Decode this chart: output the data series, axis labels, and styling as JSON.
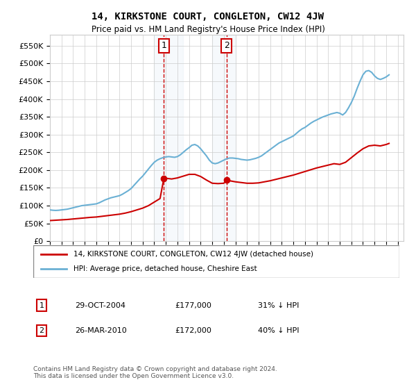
{
  "title": "14, KIRKSTONE COURT, CONGLETON, CW12 4JW",
  "subtitle": "Price paid vs. HM Land Registry's House Price Index (HPI)",
  "legend_line1": "14, KIRKSTONE COURT, CONGLETON, CW12 4JW (detached house)",
  "legend_line2": "HPI: Average price, detached house, Cheshire East",
  "transaction1_label": "1",
  "transaction1_date": "29-OCT-2004",
  "transaction1_price": "£177,000",
  "transaction1_hpi": "31% ↓ HPI",
  "transaction2_label": "2",
  "transaction2_date": "26-MAR-2010",
  "transaction2_price": "£172,000",
  "transaction2_hpi": "40% ↓ HPI",
  "copyright": "Contains HM Land Registry data © Crown copyright and database right 2024.\nThis data is licensed under the Open Government Licence v3.0.",
  "hpi_color": "#6ab0d4",
  "price_color": "#cc0000",
  "highlight_color": "#dce9f5",
  "transaction1_x": 2004.83,
  "transaction2_x": 2010.23,
  "ylim": [
    0,
    580000
  ],
  "xlim_start": 1995,
  "xlim_end": 2025.5,
  "hpi_data": {
    "years": [
      1995.0,
      1995.25,
      1995.5,
      1995.75,
      1996.0,
      1996.25,
      1996.5,
      1996.75,
      1997.0,
      1997.25,
      1997.5,
      1997.75,
      1998.0,
      1998.25,
      1998.5,
      1998.75,
      1999.0,
      1999.25,
      1999.5,
      1999.75,
      2000.0,
      2000.25,
      2000.5,
      2000.75,
      2001.0,
      2001.25,
      2001.5,
      2001.75,
      2002.0,
      2002.25,
      2002.5,
      2002.75,
      2003.0,
      2003.25,
      2003.5,
      2003.75,
      2004.0,
      2004.25,
      2004.5,
      2004.75,
      2005.0,
      2005.25,
      2005.5,
      2005.75,
      2006.0,
      2006.25,
      2006.5,
      2006.75,
      2007.0,
      2007.25,
      2007.5,
      2007.75,
      2008.0,
      2008.25,
      2008.5,
      2008.75,
      2009.0,
      2009.25,
      2009.5,
      2009.75,
      2010.0,
      2010.25,
      2010.5,
      2010.75,
      2011.0,
      2011.25,
      2011.5,
      2011.75,
      2012.0,
      2012.25,
      2012.5,
      2012.75,
      2013.0,
      2013.25,
      2013.5,
      2013.75,
      2014.0,
      2014.25,
      2014.5,
      2014.75,
      2015.0,
      2015.25,
      2015.5,
      2015.75,
      2016.0,
      2016.25,
      2016.5,
      2016.75,
      2017.0,
      2017.25,
      2017.5,
      2017.75,
      2018.0,
      2018.25,
      2018.5,
      2018.75,
      2019.0,
      2019.25,
      2019.5,
      2019.75,
      2020.0,
      2020.25,
      2020.5,
      2020.75,
      2021.0,
      2021.25,
      2021.5,
      2021.75,
      2022.0,
      2022.25,
      2022.5,
      2022.75,
      2023.0,
      2023.25,
      2023.5,
      2023.75,
      2024.0,
      2024.25
    ],
    "values": [
      88000,
      87000,
      86500,
      87000,
      88000,
      89000,
      90000,
      92000,
      94000,
      96000,
      98000,
      100000,
      101000,
      102000,
      103000,
      104000,
      105000,
      108000,
      112000,
      116000,
      119000,
      122000,
      124000,
      126000,
      128000,
      132000,
      137000,
      142000,
      148000,
      157000,
      166000,
      175000,
      183000,
      193000,
      203000,
      213000,
      222000,
      228000,
      232000,
      235000,
      237000,
      238000,
      237000,
      236000,
      238000,
      243000,
      250000,
      257000,
      263000,
      270000,
      272000,
      268000,
      260000,
      250000,
      240000,
      228000,
      220000,
      218000,
      220000,
      224000,
      228000,
      232000,
      234000,
      234000,
      233000,
      232000,
      230000,
      229000,
      228000,
      229000,
      231000,
      233000,
      236000,
      240000,
      246000,
      252000,
      258000,
      264000,
      270000,
      276000,
      280000,
      284000,
      288000,
      292000,
      296000,
      303000,
      310000,
      316000,
      320000,
      326000,
      332000,
      337000,
      341000,
      345000,
      349000,
      352000,
      355000,
      358000,
      360000,
      362000,
      360000,
      355000,
      362000,
      375000,
      390000,
      408000,
      430000,
      450000,
      468000,
      478000,
      480000,
      475000,
      465000,
      458000,
      455000,
      458000,
      462000,
      468000
    ]
  },
  "price_data": {
    "years": [
      1995.0,
      1995.5,
      1996.0,
      1996.5,
      1997.0,
      1997.5,
      1998.0,
      1998.5,
      1999.0,
      1999.5,
      2000.0,
      2000.5,
      2001.0,
      2001.5,
      2002.0,
      2002.5,
      2003.0,
      2003.5,
      2004.0,
      2004.5,
      2004.83,
      2005.0,
      2005.5,
      2006.0,
      2006.5,
      2007.0,
      2007.5,
      2008.0,
      2008.5,
      2009.0,
      2009.5,
      2010.0,
      2010.23,
      2010.5,
      2011.0,
      2011.5,
      2012.0,
      2012.5,
      2013.0,
      2013.5,
      2014.0,
      2014.5,
      2015.0,
      2015.5,
      2016.0,
      2016.5,
      2017.0,
      2017.5,
      2018.0,
      2018.5,
      2019.0,
      2019.5,
      2020.0,
      2020.5,
      2021.0,
      2021.5,
      2022.0,
      2022.5,
      2023.0,
      2023.5,
      2024.0,
      2024.25
    ],
    "values": [
      58000,
      59000,
      60000,
      61000,
      62500,
      64000,
      65500,
      67000,
      68000,
      70000,
      72000,
      74000,
      76000,
      79000,
      83000,
      88000,
      93000,
      100000,
      110000,
      120000,
      177000,
      177000,
      175000,
      178000,
      183000,
      188000,
      188000,
      182000,
      172000,
      163000,
      162000,
      163000,
      172000,
      170000,
      167000,
      165000,
      163000,
      163000,
      164000,
      167000,
      170000,
      174000,
      178000,
      182000,
      186000,
      191000,
      196000,
      201000,
      206000,
      210000,
      214000,
      218000,
      216000,
      222000,
      235000,
      248000,
      260000,
      268000,
      270000,
      268000,
      272000,
      275000
    ]
  }
}
